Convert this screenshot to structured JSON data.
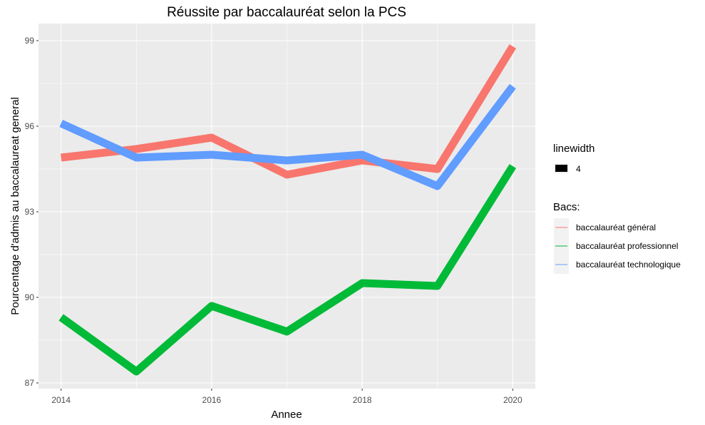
{
  "chart_data": {
    "type": "line",
    "title": "Réussite par baccalauréat selon la PCS",
    "xlabel": "Annee",
    "ylabel": "Pourcentage d'admis au baccalaureat general",
    "x": [
      2014,
      2015,
      2016,
      2017,
      2018,
      2019,
      2020
    ],
    "xticks": [
      2014,
      2016,
      2018,
      2020
    ],
    "xtick_labels": [
      "2014",
      "2016",
      "2018",
      "2020"
    ],
    "yticks": [
      87,
      90,
      93,
      96,
      99
    ],
    "ytick_labels": [
      "87",
      "90",
      "93",
      "96",
      "99"
    ],
    "xlim": [
      2013.7,
      2020.3
    ],
    "ylim": [
      86.8,
      99.6
    ],
    "grid": true,
    "legend_position": "right",
    "linewidth_legend": {
      "title": "linewidth",
      "value": "4"
    },
    "color_legend_title": "Bacs:",
    "series": [
      {
        "name": "baccalauréat général",
        "color": "#F8766D",
        "values": [
          94.9,
          95.2,
          95.6,
          94.3,
          94.8,
          94.5,
          98.8
        ]
      },
      {
        "name": "baccalauréat professionnel",
        "color": "#00BA38",
        "values": [
          89.3,
          87.4,
          89.7,
          88.8,
          90.5,
          90.4,
          94.6
        ]
      },
      {
        "name": "baccalauréat technologique",
        "color": "#619CFF",
        "values": [
          96.1,
          94.9,
          95.0,
          94.8,
          95.0,
          93.9,
          97.4
        ]
      }
    ]
  }
}
